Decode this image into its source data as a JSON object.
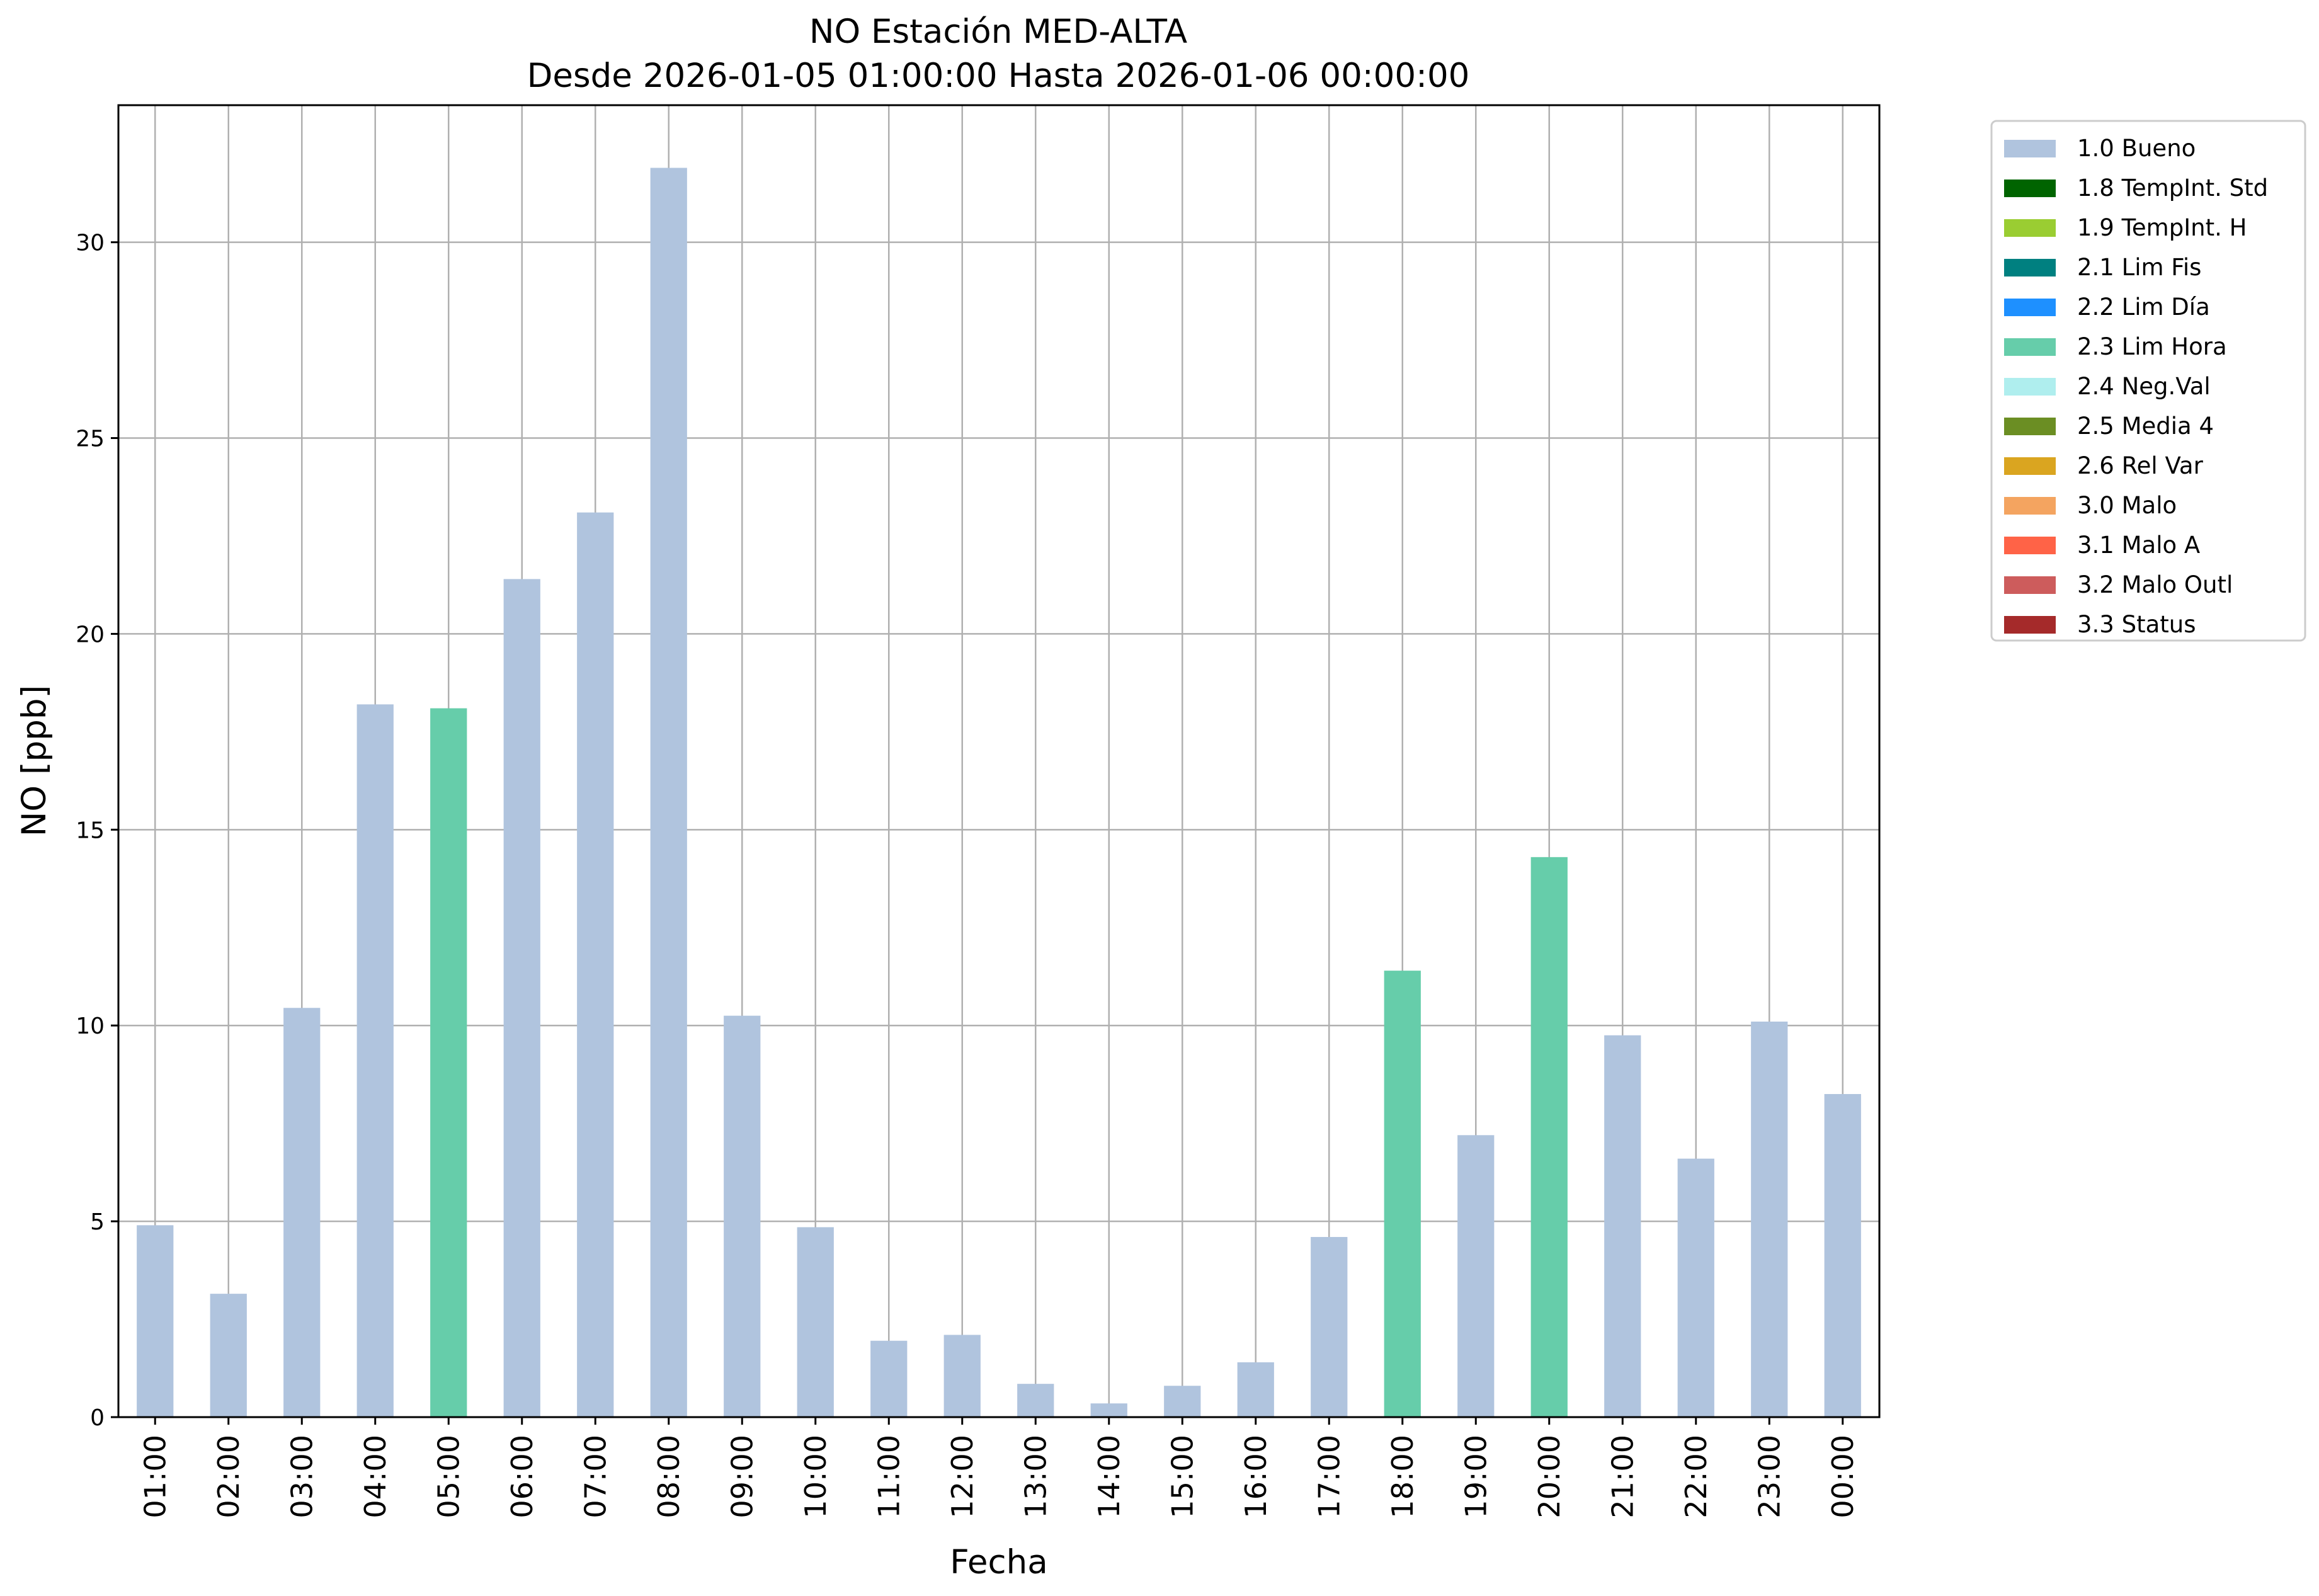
{
  "chart_data": {
    "type": "bar",
    "title": "NO Estación MED-ALTA",
    "subtitle": "Desde 2026-01-05 01:00:00 Hasta 2026-01-06 00:00:00",
    "xlabel": "Fecha",
    "ylabel": "NO [ppb]",
    "ylim": [
      0,
      33.5
    ],
    "yticks": [
      0,
      5,
      10,
      15,
      20,
      25,
      30
    ],
    "grid": true,
    "legend_position": "outside-top-right",
    "categories": [
      "01:00",
      "02:00",
      "03:00",
      "04:00",
      "05:00",
      "06:00",
      "07:00",
      "08:00",
      "09:00",
      "10:00",
      "11:00",
      "12:00",
      "13:00",
      "14:00",
      "15:00",
      "16:00",
      "17:00",
      "18:00",
      "19:00",
      "20:00",
      "21:00",
      "22:00",
      "23:00",
      "00:00"
    ],
    "values": [
      4.9,
      3.15,
      10.45,
      18.2,
      18.1,
      21.4,
      23.1,
      31.9,
      10.25,
      4.85,
      1.95,
      2.1,
      0.85,
      0.35,
      0.8,
      1.4,
      4.6,
      11.4,
      7.2,
      14.3,
      9.75,
      6.6,
      10.1,
      8.25
    ],
    "flags": [
      "1.0 Bueno",
      "1.0 Bueno",
      "1.0 Bueno",
      "1.0 Bueno",
      "2.3 Lim Hora",
      "1.0 Bueno",
      "1.0 Bueno",
      "1.0 Bueno",
      "1.0 Bueno",
      "1.0 Bueno",
      "1.0 Bueno",
      "1.0 Bueno",
      "1.0 Bueno",
      "1.0 Bueno",
      "1.0 Bueno",
      "1.0 Bueno",
      "1.0 Bueno",
      "2.3 Lim Hora",
      "1.0 Bueno",
      "2.3 Lim Hora",
      "1.0 Bueno",
      "1.0 Bueno",
      "1.0 Bueno",
      "1.0 Bueno"
    ],
    "legend": [
      {
        "label": "1.0 Bueno",
        "color": "#b0c4de"
      },
      {
        "label": "1.8 TempInt. Std",
        "color": "#006400"
      },
      {
        "label": "1.9 TempInt. H",
        "color": "#9acd32"
      },
      {
        "label": "2.1 Lim Fis",
        "color": "#008080"
      },
      {
        "label": "2.2 Lim Día",
        "color": "#1e90ff"
      },
      {
        "label": "2.3 Lim Hora",
        "color": "#66cdaa"
      },
      {
        "label": "2.4 Neg.Val",
        "color": "#afeeee"
      },
      {
        "label": "2.5 Media 4",
        "color": "#6b8e23"
      },
      {
        "label": "2.6 Rel Var",
        "color": "#daa520"
      },
      {
        "label": "3.0 Malo",
        "color": "#f4a460"
      },
      {
        "label": "3.1 Malo A",
        "color": "#ff6347"
      },
      {
        "label": "3.2 Malo Outl",
        "color": "#cd5c5c"
      },
      {
        "label": "3.3 Status",
        "color": "#a52a2a"
      }
    ]
  }
}
